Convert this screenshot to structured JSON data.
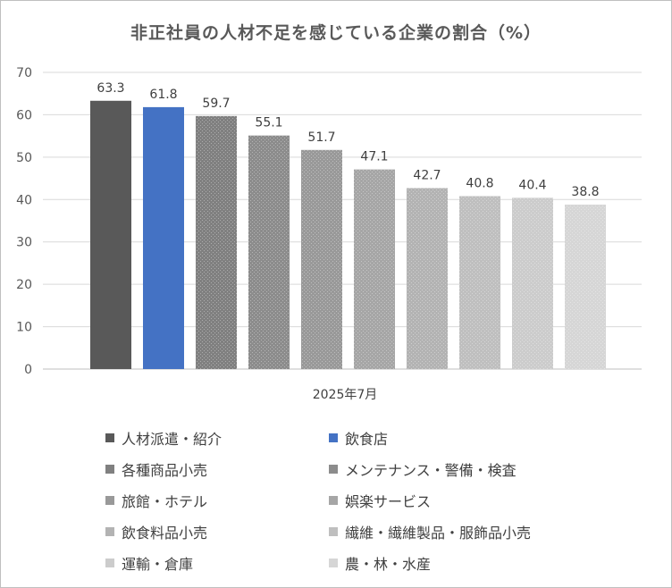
{
  "chart_data": {
    "type": "bar",
    "title": "非正社員の人材不足を感じている企業の割合（%）",
    "categories": [
      "2025年7月"
    ],
    "ylim": [
      0,
      70
    ],
    "yticks": [
      0,
      10,
      20,
      30,
      40,
      50,
      60,
      70
    ],
    "grid": true,
    "legend_position": "bottom",
    "series": [
      {
        "name": "人材派遣・紹介",
        "values": [
          63.3
        ],
        "color": "#595959",
        "hatch": false
      },
      {
        "name": "飲食店",
        "values": [
          61.8
        ],
        "color": "#4472c4",
        "hatch": false
      },
      {
        "name": "各種商品小売",
        "values": [
          59.7
        ],
        "color": "#808080",
        "hatch": true
      },
      {
        "name": "メンテナンス・警備・検査",
        "values": [
          55.1
        ],
        "color": "#8c8c8c",
        "hatch": true
      },
      {
        "name": "旅館・ホテル",
        "values": [
          51.7
        ],
        "color": "#999999",
        "hatch": true
      },
      {
        "name": "娯楽サービス",
        "values": [
          47.1
        ],
        "color": "#a6a6a6",
        "hatch": true
      },
      {
        "name": "飲食料品小売",
        "values": [
          42.7
        ],
        "color": "#b3b3b3",
        "hatch": true
      },
      {
        "name": "繊維・繊維製品・服飾品小売",
        "values": [
          40.8
        ],
        "color": "#bfbfbf",
        "hatch": true
      },
      {
        "name": "運輸・倉庫",
        "values": [
          40.4
        ],
        "color": "#cccccc",
        "hatch": true
      },
      {
        "name": "農・林・水産",
        "values": [
          38.8
        ],
        "color": "#d6d6d6",
        "hatch": true
      }
    ]
  }
}
